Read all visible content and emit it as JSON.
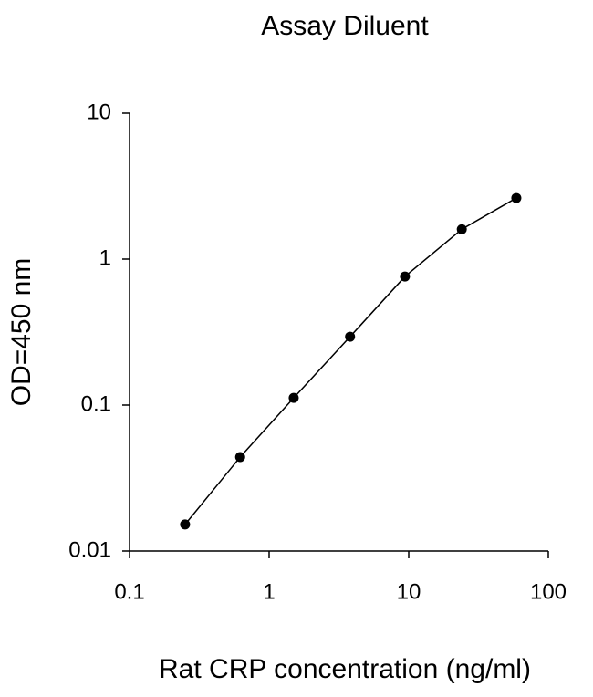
{
  "chart_data": {
    "type": "line",
    "title": "Assay Diluent",
    "x_label": "Rat CRP concentration (ng/ml)",
    "y_label": "OD=450 nm",
    "x": [
      0.25,
      0.62,
      1.5,
      3.8,
      9.4,
      24,
      59
    ],
    "series": [
      {
        "values": [
          0.0152,
          0.044,
          0.112,
          0.294,
          0.76,
          1.6,
          2.62
        ],
        "color": "#000000"
      }
    ],
    "x_log": true,
    "y_log": true,
    "xlim": [
      0.1,
      100
    ],
    "xticks": [
      0.1,
      1,
      10,
      100
    ],
    "ylim": [
      0.01,
      10
    ],
    "yticks": [
      0.01,
      0.1,
      1,
      10
    ]
  }
}
